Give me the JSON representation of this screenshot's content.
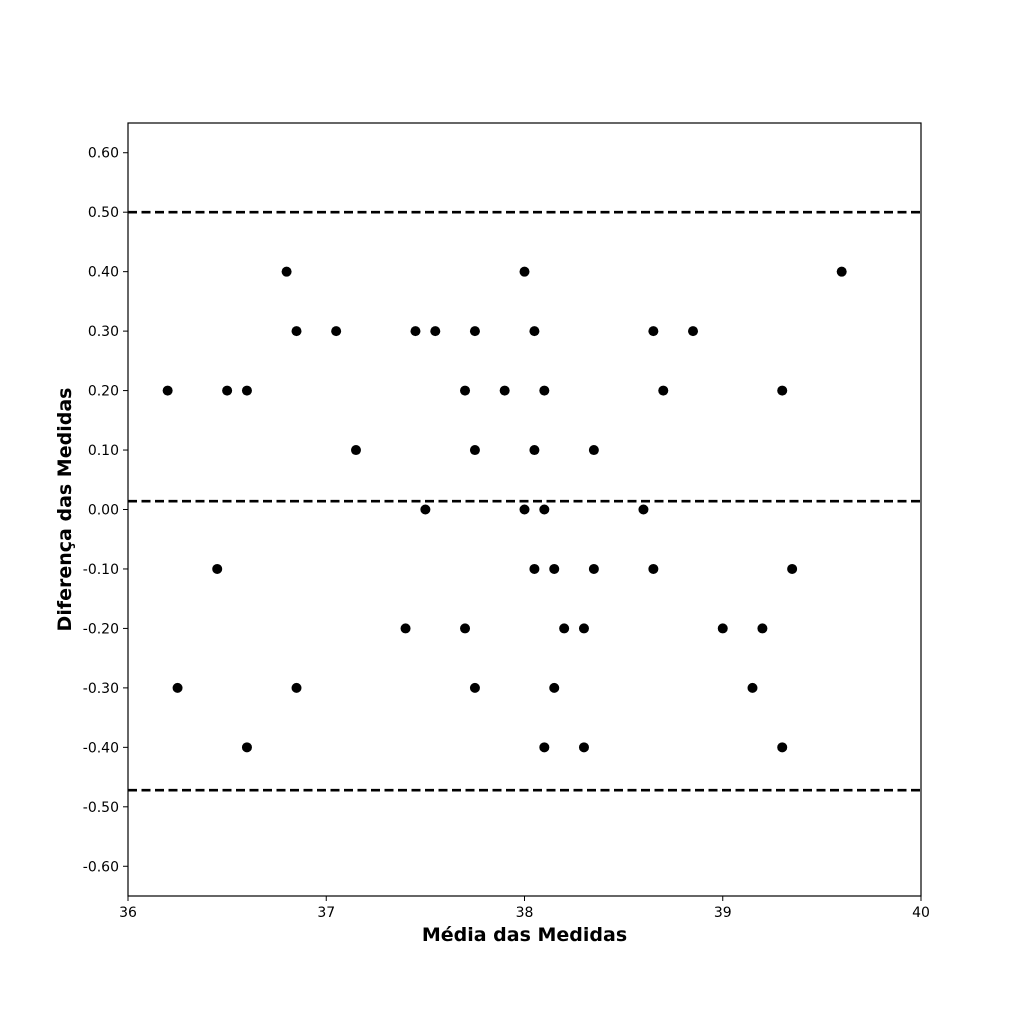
{
  "chart_data": {
    "type": "scatter",
    "xlabel": "Média das Medidas",
    "ylabel": "Diferença das Medidas",
    "xlim": [
      36,
      40
    ],
    "ylim": [
      -0.65,
      0.65
    ],
    "xticks": [
      36,
      37,
      38,
      39,
      40
    ],
    "xtick_labels": [
      "36",
      "37",
      "38",
      "39",
      "40"
    ],
    "yticks": [
      0.6,
      0.5,
      0.4,
      0.3,
      0.2,
      0.1,
      0.0,
      -0.1,
      -0.2,
      -0.3,
      -0.4,
      -0.5,
      -0.6
    ],
    "ytick_labels": [
      "0.60",
      "0.50",
      "0.40",
      "0.30",
      "0.20",
      "0.10",
      "0.00",
      "-0.10",
      "-0.20",
      "-0.30",
      "-0.40",
      "-0.50",
      "-0.60"
    ],
    "grid": false,
    "marker_color": "#000000",
    "line_color": "#000000",
    "reference_lines": [
      {
        "name": "upper-limit",
        "y": 0.5,
        "style": "dashed"
      },
      {
        "name": "mean-difference",
        "y": 0.014,
        "style": "dashed"
      },
      {
        "name": "lower-limit",
        "y": -0.472,
        "style": "dashed"
      }
    ],
    "points": [
      {
        "x": 36.2,
        "y": 0.2
      },
      {
        "x": 36.25,
        "y": -0.3
      },
      {
        "x": 36.45,
        "y": -0.1
      },
      {
        "x": 36.5,
        "y": 0.2
      },
      {
        "x": 36.6,
        "y": 0.2
      },
      {
        "x": 36.6,
        "y": -0.4
      },
      {
        "x": 36.8,
        "y": 0.4
      },
      {
        "x": 36.85,
        "y": 0.3
      },
      {
        "x": 36.85,
        "y": -0.3
      },
      {
        "x": 37.05,
        "y": 0.3
      },
      {
        "x": 37.15,
        "y": 0.1
      },
      {
        "x": 37.4,
        "y": -0.2
      },
      {
        "x": 37.45,
        "y": 0.3
      },
      {
        "x": 37.5,
        "y": 0.0
      },
      {
        "x": 37.55,
        "y": 0.3
      },
      {
        "x": 37.7,
        "y": 0.2
      },
      {
        "x": 37.7,
        "y": -0.2
      },
      {
        "x": 37.75,
        "y": 0.3
      },
      {
        "x": 37.75,
        "y": 0.1
      },
      {
        "x": 37.75,
        "y": -0.3
      },
      {
        "x": 37.9,
        "y": 0.2
      },
      {
        "x": 38.0,
        "y": 0.4
      },
      {
        "x": 38.0,
        "y": 0.0
      },
      {
        "x": 38.05,
        "y": 0.3
      },
      {
        "x": 38.05,
        "y": 0.1
      },
      {
        "x": 38.05,
        "y": -0.1
      },
      {
        "x": 38.1,
        "y": 0.2
      },
      {
        "x": 38.1,
        "y": 0.0
      },
      {
        "x": 38.1,
        "y": -0.4
      },
      {
        "x": 38.15,
        "y": -0.1
      },
      {
        "x": 38.15,
        "y": -0.3
      },
      {
        "x": 38.2,
        "y": -0.2
      },
      {
        "x": 38.3,
        "y": -0.2
      },
      {
        "x": 38.3,
        "y": -0.4
      },
      {
        "x": 38.35,
        "y": 0.1
      },
      {
        "x": 38.35,
        "y": -0.1
      },
      {
        "x": 38.6,
        "y": 0.0
      },
      {
        "x": 38.65,
        "y": 0.3
      },
      {
        "x": 38.65,
        "y": -0.1
      },
      {
        "x": 38.7,
        "y": 0.2
      },
      {
        "x": 38.85,
        "y": 0.3
      },
      {
        "x": 39.0,
        "y": -0.2
      },
      {
        "x": 39.15,
        "y": -0.3
      },
      {
        "x": 39.2,
        "y": -0.2
      },
      {
        "x": 39.3,
        "y": 0.2
      },
      {
        "x": 39.3,
        "y": -0.4
      },
      {
        "x": 39.35,
        "y": -0.1
      },
      {
        "x": 39.6,
        "y": 0.4
      }
    ]
  }
}
